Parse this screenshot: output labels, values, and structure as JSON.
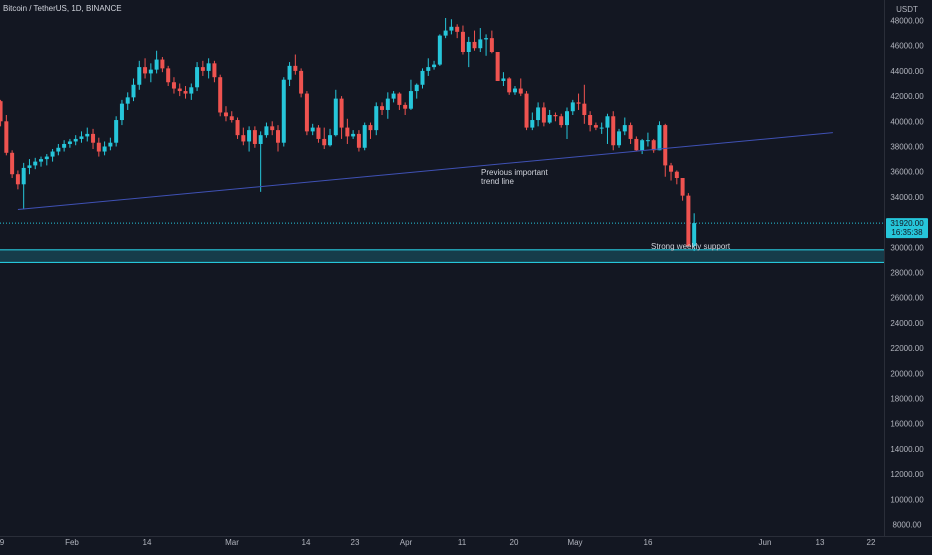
{
  "header": {
    "symbol_title": "Bitcoin / TetherUS, 1D, BINANCE"
  },
  "price_axis": {
    "currency_label": "USDT",
    "ticks": [
      "48000.00",
      "46000.00",
      "44000.00",
      "42000.00",
      "40000.00",
      "38000.00",
      "36000.00",
      "34000.00",
      "32000.00",
      "30000.00",
      "28000.00",
      "26000.00",
      "24000.00",
      "22000.00",
      "20000.00",
      "18000.00",
      "16000.00",
      "14000.00",
      "12000.00",
      "10000.00",
      "8000.00"
    ],
    "last_price_label": "31920.00",
    "countdown_label": "16:35:38"
  },
  "time_axis": {
    "ticks": [
      "9",
      "Feb",
      "14",
      "Mar",
      "14",
      "23",
      "Apr",
      "11",
      "20",
      "May",
      "16",
      "13",
      "Jun",
      "22"
    ]
  },
  "annotations": {
    "trend_line_note_line1": "Previous important",
    "trend_line_note_line2": "trend line",
    "support_note": "Strong weekly support"
  },
  "colors": {
    "background": "#131722",
    "up_candle": "#26c6da",
    "down_candle": "#ef5350",
    "trend_line": "#3f51b5",
    "support_zone": "#26c6da",
    "text": "#d1d4dc",
    "axis_text": "#b2b5be"
  },
  "chart_data": {
    "type": "candlestick",
    "title": "Bitcoin / TetherUS, 1D, BINANCE",
    "ylabel": "USDT",
    "ylim": [
      7500,
      48600
    ],
    "date_start": "2022-01-08",
    "date_end": "2022-06-24",
    "candles": [
      {
        "date": "2022-01-09",
        "o": 42000,
        "h": 42700,
        "l": 41300,
        "c": 41600
      },
      {
        "date": "2022-01-10",
        "o": 41600,
        "h": 41700,
        "l": 39600,
        "c": 40000
      },
      {
        "date": "2022-01-11",
        "o": 40000,
        "h": 40500,
        "l": 37300,
        "c": 37500
      },
      {
        "date": "2022-01-12",
        "o": 37500,
        "h": 37700,
        "l": 35500,
        "c": 35800
      },
      {
        "date": "2022-01-13",
        "o": 35800,
        "h": 36100,
        "l": 34600,
        "c": 35000
      },
      {
        "date": "2022-01-14",
        "o": 35000,
        "h": 36700,
        "l": 33000,
        "c": 36300
      },
      {
        "date": "2022-01-15",
        "o": 36300,
        "h": 37000,
        "l": 35800,
        "c": 36500
      },
      {
        "date": "2022-01-16",
        "o": 36500,
        "h": 37100,
        "l": 36200,
        "c": 36800
      },
      {
        "date": "2022-01-17",
        "o": 36800,
        "h": 37200,
        "l": 36400,
        "c": 37000
      },
      {
        "date": "2022-01-18",
        "o": 37000,
        "h": 37400,
        "l": 36500,
        "c": 37200
      },
      {
        "date": "2022-01-19",
        "o": 37200,
        "h": 37800,
        "l": 36800,
        "c": 37600
      },
      {
        "date": "2022-01-20",
        "o": 37600,
        "h": 38200,
        "l": 37300,
        "c": 37900
      },
      {
        "date": "2022-01-21",
        "o": 37900,
        "h": 38500,
        "l": 37600,
        "c": 38200
      },
      {
        "date": "2022-01-22",
        "o": 38200,
        "h": 38600,
        "l": 37900,
        "c": 38400
      },
      {
        "date": "2022-01-23",
        "o": 38400,
        "h": 38900,
        "l": 38100,
        "c": 38600
      },
      {
        "date": "2022-01-24",
        "o": 38600,
        "h": 39200,
        "l": 38300,
        "c": 38800
      },
      {
        "date": "2022-01-25",
        "o": 38800,
        "h": 39500,
        "l": 38400,
        "c": 39000
      },
      {
        "date": "2022-01-26",
        "o": 39000,
        "h": 39400,
        "l": 37800,
        "c": 38300
      },
      {
        "date": "2022-01-27",
        "o": 38300,
        "h": 38700,
        "l": 37200,
        "c": 37600
      },
      {
        "date": "2022-01-28",
        "o": 37600,
        "h": 38400,
        "l": 37300,
        "c": 38000
      },
      {
        "date": "2022-01-29",
        "o": 38000,
        "h": 38700,
        "l": 37700,
        "c": 38300
      },
      {
        "date": "2022-01-30",
        "o": 38300,
        "h": 40400,
        "l": 38000,
        "c": 40100
      },
      {
        "date": "2022-01-31",
        "o": 40100,
        "h": 41700,
        "l": 39700,
        "c": 41400
      },
      {
        "date": "2022-02-01",
        "o": 41400,
        "h": 42300,
        "l": 40900,
        "c": 41900
      },
      {
        "date": "2022-02-02",
        "o": 41900,
        "h": 43400,
        "l": 41600,
        "c": 42900
      },
      {
        "date": "2022-02-03",
        "o": 42900,
        "h": 44800,
        "l": 42500,
        "c": 44300
      },
      {
        "date": "2022-02-04",
        "o": 44300,
        "h": 45000,
        "l": 43400,
        "c": 43800
      },
      {
        "date": "2022-02-05",
        "o": 43800,
        "h": 44600,
        "l": 43100,
        "c": 44100
      },
      {
        "date": "2022-02-06",
        "o": 44100,
        "h": 45600,
        "l": 43800,
        "c": 44900
      },
      {
        "date": "2022-02-07",
        "o": 44900,
        "h": 45100,
        "l": 43900,
        "c": 44200
      },
      {
        "date": "2022-02-08",
        "o": 44200,
        "h": 44400,
        "l": 42800,
        "c": 43100
      },
      {
        "date": "2022-02-09",
        "o": 43100,
        "h": 43500,
        "l": 42200,
        "c": 42600
      },
      {
        "date": "2022-02-10",
        "o": 42600,
        "h": 43000,
        "l": 42000,
        "c": 42400
      },
      {
        "date": "2022-02-11",
        "o": 42400,
        "h": 42800,
        "l": 41800,
        "c": 42200
      },
      {
        "date": "2022-02-12",
        "o": 42200,
        "h": 43000,
        "l": 41700,
        "c": 42700
      },
      {
        "date": "2022-02-13",
        "o": 42700,
        "h": 44700,
        "l": 42400,
        "c": 44300
      },
      {
        "date": "2022-02-14",
        "o": 44300,
        "h": 44800,
        "l": 43600,
        "c": 44000
      },
      {
        "date": "2022-02-15",
        "o": 44000,
        "h": 45000,
        "l": 43400,
        "c": 44600
      },
      {
        "date": "2022-02-16",
        "o": 44600,
        "h": 44800,
        "l": 43100,
        "c": 43500
      },
      {
        "date": "2022-02-17",
        "o": 43500,
        "h": 43700,
        "l": 40400,
        "c": 40700
      },
      {
        "date": "2022-02-18",
        "o": 40700,
        "h": 41200,
        "l": 40000,
        "c": 40400
      },
      {
        "date": "2022-02-19",
        "o": 40400,
        "h": 40800,
        "l": 39900,
        "c": 40100
      },
      {
        "date": "2022-02-20",
        "o": 40100,
        "h": 40300,
        "l": 38600,
        "c": 38900
      },
      {
        "date": "2022-02-21",
        "o": 38900,
        "h": 39500,
        "l": 38100,
        "c": 38400
      },
      {
        "date": "2022-02-22",
        "o": 38400,
        "h": 39600,
        "l": 37600,
        "c": 39300
      },
      {
        "date": "2022-02-23",
        "o": 39300,
        "h": 39600,
        "l": 37900,
        "c": 38200
      },
      {
        "date": "2022-02-24",
        "o": 38200,
        "h": 39200,
        "l": 34400,
        "c": 38900
      },
      {
        "date": "2022-02-25",
        "o": 38900,
        "h": 39900,
        "l": 38700,
        "c": 39600
      },
      {
        "date": "2022-02-26",
        "o": 39600,
        "h": 40000,
        "l": 38900,
        "c": 39300
      },
      {
        "date": "2022-02-27",
        "o": 39300,
        "h": 39700,
        "l": 37600,
        "c": 38300
      },
      {
        "date": "2022-02-28",
        "o": 38300,
        "h": 43500,
        "l": 38000,
        "c": 43300
      },
      {
        "date": "2022-03-01",
        "o": 43300,
        "h": 44700,
        "l": 42800,
        "c": 44400
      },
      {
        "date": "2022-03-02",
        "o": 44400,
        "h": 45300,
        "l": 43700,
        "c": 44000
      },
      {
        "date": "2022-03-03",
        "o": 44000,
        "h": 44200,
        "l": 41900,
        "c": 42200
      },
      {
        "date": "2022-03-04",
        "o": 42200,
        "h": 42400,
        "l": 38900,
        "c": 39200
      },
      {
        "date": "2022-03-05",
        "o": 39200,
        "h": 39800,
        "l": 38900,
        "c": 39500
      },
      {
        "date": "2022-03-06",
        "o": 39500,
        "h": 39700,
        "l": 38300,
        "c": 38600
      },
      {
        "date": "2022-03-07",
        "o": 38600,
        "h": 39500,
        "l": 37800,
        "c": 38100
      },
      {
        "date": "2022-03-08",
        "o": 38100,
        "h": 39400,
        "l": 38000,
        "c": 38900
      },
      {
        "date": "2022-03-09",
        "o": 38900,
        "h": 42500,
        "l": 38800,
        "c": 41800
      },
      {
        "date": "2022-03-10",
        "o": 41800,
        "h": 42000,
        "l": 38600,
        "c": 39500
      },
      {
        "date": "2022-03-11",
        "o": 39500,
        "h": 40200,
        "l": 38200,
        "c": 38800
      },
      {
        "date": "2022-03-12",
        "o": 38800,
        "h": 39300,
        "l": 38600,
        "c": 39000
      },
      {
        "date": "2022-03-13",
        "o": 39000,
        "h": 39300,
        "l": 37600,
        "c": 37900
      },
      {
        "date": "2022-03-14",
        "o": 37900,
        "h": 39900,
        "l": 37700,
        "c": 39700
      },
      {
        "date": "2022-03-15",
        "o": 39700,
        "h": 39900,
        "l": 38600,
        "c": 39300
      },
      {
        "date": "2022-03-16",
        "o": 39300,
        "h": 41500,
        "l": 38900,
        "c": 41200
      },
      {
        "date": "2022-03-17",
        "o": 41200,
        "h": 41500,
        "l": 40500,
        "c": 40900
      },
      {
        "date": "2022-03-18",
        "o": 40900,
        "h": 42300,
        "l": 40200,
        "c": 41800
      },
      {
        "date": "2022-03-19",
        "o": 41800,
        "h": 42400,
        "l": 41500,
        "c": 42200
      },
      {
        "date": "2022-03-20",
        "o": 42200,
        "h": 42300,
        "l": 40900,
        "c": 41300
      },
      {
        "date": "2022-03-21",
        "o": 41300,
        "h": 41500,
        "l": 40500,
        "c": 41000
      },
      {
        "date": "2022-03-22",
        "o": 41000,
        "h": 43300,
        "l": 40900,
        "c": 42400
      },
      {
        "date": "2022-03-23",
        "o": 42400,
        "h": 43000,
        "l": 41800,
        "c": 42900
      },
      {
        "date": "2022-03-24",
        "o": 42900,
        "h": 44200,
        "l": 42600,
        "c": 44000
      },
      {
        "date": "2022-03-25",
        "o": 44000,
        "h": 45000,
        "l": 43600,
        "c": 44300
      },
      {
        "date": "2022-03-26",
        "o": 44300,
        "h": 44800,
        "l": 44100,
        "c": 44500
      },
      {
        "date": "2022-03-27",
        "o": 44500,
        "h": 46900,
        "l": 44400,
        "c": 46800
      },
      {
        "date": "2022-03-28",
        "o": 46800,
        "h": 48200,
        "l": 46600,
        "c": 47200
      },
      {
        "date": "2022-03-29",
        "o": 47200,
        "h": 48100,
        "l": 46900,
        "c": 47500
      },
      {
        "date": "2022-03-30",
        "o": 47500,
        "h": 47700,
        "l": 46600,
        "c": 47100
      },
      {
        "date": "2022-03-31",
        "o": 47100,
        "h": 47600,
        "l": 45300,
        "c": 45500
      },
      {
        "date": "2022-04-01",
        "o": 45500,
        "h": 46700,
        "l": 44300,
        "c": 46300
      },
      {
        "date": "2022-04-02",
        "o": 46300,
        "h": 47200,
        "l": 45600,
        "c": 45800
      },
      {
        "date": "2022-04-03",
        "o": 45800,
        "h": 47400,
        "l": 45500,
        "c": 46500
      },
      {
        "date": "2022-04-04",
        "o": 46500,
        "h": 46900,
        "l": 45200,
        "c": 46600
      },
      {
        "date": "2022-04-05",
        "o": 46600,
        "h": 47200,
        "l": 45400,
        "c": 45500
      },
      {
        "date": "2022-04-06",
        "o": 45500,
        "h": 45500,
        "l": 43200,
        "c": 43200
      },
      {
        "date": "2022-04-07",
        "o": 43200,
        "h": 43900,
        "l": 42800,
        "c": 43400
      },
      {
        "date": "2022-04-08",
        "o": 43400,
        "h": 43500,
        "l": 42100,
        "c": 42300
      },
      {
        "date": "2022-04-09",
        "o": 42300,
        "h": 42800,
        "l": 42100,
        "c": 42600
      },
      {
        "date": "2022-04-10",
        "o": 42600,
        "h": 43400,
        "l": 42000,
        "c": 42200
      },
      {
        "date": "2022-04-11",
        "o": 42200,
        "h": 42400,
        "l": 39300,
        "c": 39500
      },
      {
        "date": "2022-04-12",
        "o": 39500,
        "h": 40700,
        "l": 39300,
        "c": 40100
      },
      {
        "date": "2022-04-13",
        "o": 40100,
        "h": 41500,
        "l": 39600,
        "c": 41100
      },
      {
        "date": "2022-04-14",
        "o": 41100,
        "h": 41500,
        "l": 39600,
        "c": 39900
      },
      {
        "date": "2022-04-15",
        "o": 39900,
        "h": 40900,
        "l": 39800,
        "c": 40500
      },
      {
        "date": "2022-04-16",
        "o": 40500,
        "h": 40700,
        "l": 40000,
        "c": 40400
      },
      {
        "date": "2022-04-17",
        "o": 40400,
        "h": 40600,
        "l": 39500,
        "c": 39700
      },
      {
        "date": "2022-04-18",
        "o": 39700,
        "h": 41100,
        "l": 38600,
        "c": 40800
      },
      {
        "date": "2022-04-19",
        "o": 40800,
        "h": 41700,
        "l": 40500,
        "c": 41500
      },
      {
        "date": "2022-04-20",
        "o": 41500,
        "h": 42200,
        "l": 40900,
        "c": 41400
      },
      {
        "date": "2022-04-21",
        "o": 41400,
        "h": 42900,
        "l": 39800,
        "c": 40500
      },
      {
        "date": "2022-04-22",
        "o": 40500,
        "h": 40800,
        "l": 39200,
        "c": 39700
      },
      {
        "date": "2022-04-23",
        "o": 39700,
        "h": 39900,
        "l": 39300,
        "c": 39500
      },
      {
        "date": "2022-04-24",
        "o": 39500,
        "h": 39900,
        "l": 39000,
        "c": 39500
      },
      {
        "date": "2022-04-25",
        "o": 39500,
        "h": 40600,
        "l": 38200,
        "c": 40400
      },
      {
        "date": "2022-04-26",
        "o": 40400,
        "h": 40800,
        "l": 37700,
        "c": 38100
      },
      {
        "date": "2022-04-27",
        "o": 38100,
        "h": 39400,
        "l": 37900,
        "c": 39200
      },
      {
        "date": "2022-04-28",
        "o": 39200,
        "h": 40300,
        "l": 38900,
        "c": 39700
      },
      {
        "date": "2022-04-29",
        "o": 39700,
        "h": 39900,
        "l": 38200,
        "c": 38600
      },
      {
        "date": "2022-04-30",
        "o": 38600,
        "h": 38800,
        "l": 37600,
        "c": 37700
      },
      {
        "date": "2022-05-01",
        "o": 37700,
        "h": 38600,
        "l": 37400,
        "c": 38500
      },
      {
        "date": "2022-05-02",
        "o": 38500,
        "h": 39100,
        "l": 38000,
        "c": 38500
      },
      {
        "date": "2022-05-03",
        "o": 38500,
        "h": 38600,
        "l": 37500,
        "c": 37700
      },
      {
        "date": "2022-05-04",
        "o": 37700,
        "h": 40000,
        "l": 37700,
        "c": 39700
      },
      {
        "date": "2022-05-05",
        "o": 39700,
        "h": 39800,
        "l": 35600,
        "c": 36500
      },
      {
        "date": "2022-05-06",
        "o": 36500,
        "h": 36700,
        "l": 35300,
        "c": 36000
      },
      {
        "date": "2022-05-07",
        "o": 36000,
        "h": 36100,
        "l": 35000,
        "c": 35500
      },
      {
        "date": "2022-05-08",
        "o": 35500,
        "h": 35500,
        "l": 33700,
        "c": 34100
      },
      {
        "date": "2022-05-09",
        "o": 34100,
        "h": 34300,
        "l": 30100,
        "c": 30100
      },
      {
        "date": "2022-05-10",
        "o": 30100,
        "h": 32700,
        "l": 29700,
        "c": 31920
      }
    ],
    "drawings": {
      "trend_line": {
        "start": {
          "date": "2022-01-13",
          "price": 33000
        },
        "end": {
          "date": "2022-06-03",
          "price": 39100
        }
      },
      "support_zone": {
        "lower": 28800,
        "upper": 29800
      },
      "last_price_line": 31920
    }
  }
}
